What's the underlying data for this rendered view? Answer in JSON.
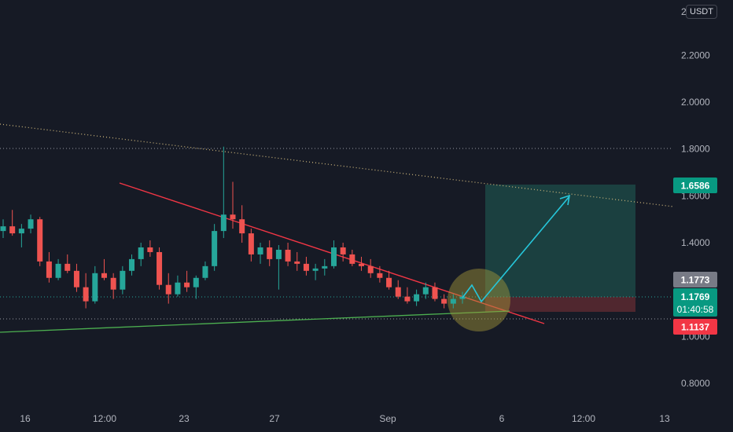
{
  "chart_data": {
    "type": "candlestick",
    "title": "",
    "currency_label": "USDT",
    "y_ticks": [
      "2.2000",
      "2.0000",
      "1.8000",
      "1.6000",
      "1.4000",
      "1.0000",
      "0.8000"
    ],
    "y_tick_values": [
      2.2,
      2.0,
      1.8,
      1.6,
      1.4,
      1.0,
      0.8
    ],
    "ylim": [
      0.72,
      2.42
    ],
    "x_ticks": [
      "16",
      "12:00",
      "23",
      "27",
      "Sep",
      "6",
      "12:00",
      "13"
    ],
    "grid": false,
    "price_badges": [
      {
        "name": "target",
        "value": "1.6586",
        "price": 1.6586,
        "color": "#089981"
      },
      {
        "name": "level",
        "value": "1.1773",
        "price": 1.1773,
        "color": "#787b86"
      },
      {
        "name": "current",
        "value": "1.1769",
        "price": 1.1769,
        "countdown": "01:40:58",
        "color": "#089981"
      },
      {
        "name": "stop",
        "value": "1.1137",
        "price": 1.1137,
        "color": "#f23645"
      }
    ],
    "horizontal_levels": [
      {
        "price": 1.81,
        "style": "dotted",
        "color": "#9598a1"
      },
      {
        "price": 1.1137,
        "style": "dotted",
        "color": "#9598a1"
      },
      {
        "price": 1.1769,
        "style": "dotted",
        "color": "#089981"
      }
    ],
    "candles_ohlc_approx": [
      [
        1.45,
        1.5,
        1.42,
        1.47
      ],
      [
        1.47,
        1.54,
        1.43,
        1.44
      ],
      [
        1.44,
        1.48,
        1.38,
        1.46
      ],
      [
        1.46,
        1.52,
        1.44,
        1.5
      ],
      [
        1.5,
        1.51,
        1.3,
        1.32
      ],
      [
        1.32,
        1.36,
        1.23,
        1.25
      ],
      [
        1.25,
        1.33,
        1.24,
        1.31
      ],
      [
        1.31,
        1.35,
        1.27,
        1.28
      ],
      [
        1.28,
        1.31,
        1.19,
        1.21
      ],
      [
        1.21,
        1.27,
        1.12,
        1.15
      ],
      [
        1.15,
        1.3,
        1.14,
        1.27
      ],
      [
        1.27,
        1.33,
        1.24,
        1.25
      ],
      [
        1.25,
        1.27,
        1.16,
        1.2
      ],
      [
        1.2,
        1.3,
        1.18,
        1.28
      ],
      [
        1.28,
        1.35,
        1.26,
        1.33
      ],
      [
        1.33,
        1.4,
        1.3,
        1.38
      ],
      [
        1.38,
        1.41,
        1.34,
        1.36
      ],
      [
        1.36,
        1.38,
        1.2,
        1.22
      ],
      [
        1.22,
        1.27,
        1.14,
        1.18
      ],
      [
        1.18,
        1.26,
        1.17,
        1.23
      ],
      [
        1.23,
        1.28,
        1.19,
        1.21
      ],
      [
        1.21,
        1.26,
        1.16,
        1.25
      ],
      [
        1.25,
        1.32,
        1.24,
        1.3
      ],
      [
        1.3,
        1.48,
        1.28,
        1.45
      ],
      [
        1.45,
        1.81,
        1.42,
        1.52
      ],
      [
        1.52,
        1.66,
        1.46,
        1.5
      ],
      [
        1.5,
        1.56,
        1.4,
        1.44
      ],
      [
        1.44,
        1.46,
        1.32,
        1.35
      ],
      [
        1.35,
        1.4,
        1.31,
        1.38
      ],
      [
        1.38,
        1.41,
        1.3,
        1.33
      ],
      [
        1.33,
        1.39,
        1.2,
        1.37
      ],
      [
        1.37,
        1.4,
        1.3,
        1.32
      ],
      [
        1.32,
        1.36,
        1.28,
        1.31
      ],
      [
        1.31,
        1.34,
        1.26,
        1.28
      ],
      [
        1.28,
        1.31,
        1.24,
        1.29
      ],
      [
        1.29,
        1.33,
        1.26,
        1.3
      ],
      [
        1.3,
        1.41,
        1.29,
        1.38
      ],
      [
        1.38,
        1.4,
        1.32,
        1.35
      ],
      [
        1.35,
        1.37,
        1.3,
        1.31
      ],
      [
        1.31,
        1.34,
        1.28,
        1.3
      ],
      [
        1.3,
        1.33,
        1.25,
        1.27
      ],
      [
        1.27,
        1.3,
        1.23,
        1.25
      ],
      [
        1.25,
        1.28,
        1.2,
        1.21
      ],
      [
        1.21,
        1.24,
        1.16,
        1.17
      ],
      [
        1.17,
        1.21,
        1.14,
        1.15
      ],
      [
        1.15,
        1.2,
        1.13,
        1.18
      ],
      [
        1.18,
        1.23,
        1.16,
        1.21
      ],
      [
        1.21,
        1.23,
        1.15,
        1.16
      ],
      [
        1.16,
        1.18,
        1.12,
        1.14
      ],
      [
        1.14,
        1.18,
        1.12,
        1.16
      ],
      [
        1.16,
        1.19,
        1.14,
        1.17
      ]
    ],
    "trend_lines": [
      {
        "name": "upper-dotted-trendline",
        "style": "dotted",
        "color": "#c8b27a"
      },
      {
        "name": "descending-resistance",
        "style": "solid",
        "color": "#f23645"
      },
      {
        "name": "ascending-support",
        "style": "solid",
        "color": "#4caf50"
      }
    ],
    "position_zone": {
      "entry": 1.1773,
      "target": 1.6586,
      "stop": 1.1137
    }
  }
}
